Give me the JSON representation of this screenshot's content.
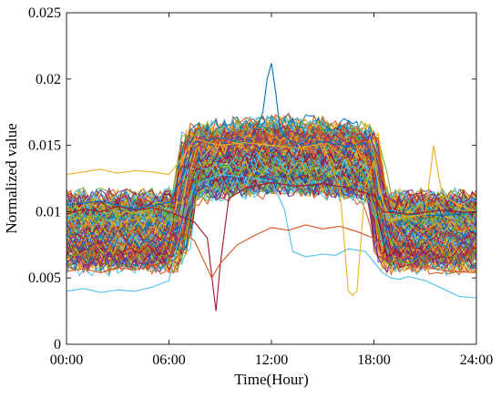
{
  "chart_data": {
    "type": "line",
    "title": "",
    "xlabel": "Time(Hour)",
    "ylabel": "Normalized value",
    "xlim": [
      0,
      96
    ],
    "ylim": [
      0,
      0.025
    ],
    "x_interval_minutes": 15,
    "x_ticks": [
      {
        "value": 0,
        "label": "00:00"
      },
      {
        "value": 24,
        "label": "06:00"
      },
      {
        "value": 48,
        "label": "12:00"
      },
      {
        "value": 72,
        "label": "18:00"
      },
      {
        "value": 96,
        "label": "24:00"
      }
    ],
    "y_ticks": [
      {
        "value": 0,
        "label": "0"
      },
      {
        "value": 0.005,
        "label": "0.005"
      },
      {
        "value": 0.01,
        "label": "0.01"
      },
      {
        "value": 0.015,
        "label": "0.015"
      },
      {
        "value": 0.02,
        "label": "0.02"
      },
      {
        "value": 0.025,
        "label": "0.025"
      }
    ],
    "grid": false,
    "legend": false,
    "series_colors": [
      "#0072bd",
      "#d95319",
      "#edb120",
      "#7e2f8e",
      "#77ac30",
      "#4dbeee",
      "#a2142f"
    ],
    "highlight_series": [
      {
        "color": "#0072bd",
        "x": [
          0,
          8,
          16,
          24,
          27,
          30,
          36,
          42,
          44,
          46,
          47,
          48,
          49,
          50,
          52,
          56,
          60,
          66,
          70,
          72,
          73,
          75,
          80,
          88,
          96
        ],
        "y": [
          0.0105,
          0.0108,
          0.0102,
          0.0107,
          0.0125,
          0.0152,
          0.0156,
          0.0151,
          0.0158,
          0.0175,
          0.02,
          0.0212,
          0.019,
          0.0162,
          0.0154,
          0.015,
          0.0153,
          0.0149,
          0.0152,
          0.0138,
          0.0112,
          0.0101,
          0.0098,
          0.0097,
          0.01
        ]
      },
      {
        "color": "#4dbeee",
        "x": [
          0,
          4,
          8,
          12,
          16,
          20,
          24,
          27,
          30,
          36,
          42,
          48,
          51,
          53,
          56,
          60,
          63,
          66,
          70,
          74,
          76,
          78,
          80,
          84,
          88,
          92,
          96
        ],
        "y": [
          0.004,
          0.0042,
          0.0039,
          0.0041,
          0.004,
          0.0043,
          0.0048,
          0.009,
          0.012,
          0.0128,
          0.0126,
          0.0123,
          0.0102,
          0.007,
          0.0066,
          0.0068,
          0.0067,
          0.0072,
          0.007,
          0.0054,
          0.005,
          0.0049,
          0.0051,
          0.0048,
          0.0042,
          0.0036,
          0.0035
        ]
      },
      {
        "color": "#edb120",
        "x": [
          0,
          4,
          8,
          12,
          16,
          20,
          24,
          27,
          30,
          36,
          42,
          48,
          54,
          60,
          64,
          66,
          67,
          68,
          70,
          72,
          74,
          76,
          80,
          84,
          86,
          87,
          88,
          92,
          96
        ],
        "y": [
          0.0128,
          0.013,
          0.0132,
          0.0129,
          0.0131,
          0.013,
          0.0128,
          0.014,
          0.0155,
          0.015,
          0.0152,
          0.015,
          0.0148,
          0.0151,
          0.0118,
          0.004,
          0.0037,
          0.004,
          0.012,
          0.0138,
          0.0108,
          0.0094,
          0.0096,
          0.0098,
          0.015,
          0.013,
          0.0112,
          0.0105,
          0.01
        ]
      },
      {
        "color": "#a2142f",
        "x": [
          0,
          4,
          8,
          12,
          16,
          20,
          24,
          27,
          30,
          33,
          34,
          35,
          36,
          38,
          42,
          48,
          54,
          60,
          66,
          72,
          74,
          80,
          88,
          96
        ],
        "y": [
          0.0098,
          0.0102,
          0.01,
          0.0104,
          0.0101,
          0.0103,
          0.01,
          0.0096,
          0.0092,
          0.008,
          0.0052,
          0.0025,
          0.006,
          0.011,
          0.0118,
          0.0122,
          0.0119,
          0.0121,
          0.0118,
          0.0112,
          0.01,
          0.0098,
          0.0101,
          0.0099
        ]
      },
      {
        "color": "#d95319",
        "x": [
          0,
          4,
          8,
          12,
          16,
          20,
          24,
          27,
          30,
          34,
          36,
          40,
          44,
          48,
          52,
          56,
          60,
          64,
          68,
          72,
          74,
          78,
          84,
          90,
          96
        ],
        "y": [
          0.0055,
          0.0057,
          0.0054,
          0.0058,
          0.0056,
          0.0059,
          0.0062,
          0.0085,
          0.0078,
          0.005,
          0.0061,
          0.0075,
          0.0082,
          0.0088,
          0.0086,
          0.009,
          0.0087,
          0.0089,
          0.0085,
          0.008,
          0.0066,
          0.006,
          0.0058,
          0.0055,
          0.0054
        ]
      }
    ],
    "ensemble": {
      "count": 180,
      "night_level_range": [
        0.0058,
        0.0112
      ],
      "day_level_range": [
        0.011,
        0.0162
      ],
      "rise_window": [
        25,
        30
      ],
      "fall_window": [
        71,
        75
      ],
      "noise_amplitude": 0.0007
    }
  }
}
